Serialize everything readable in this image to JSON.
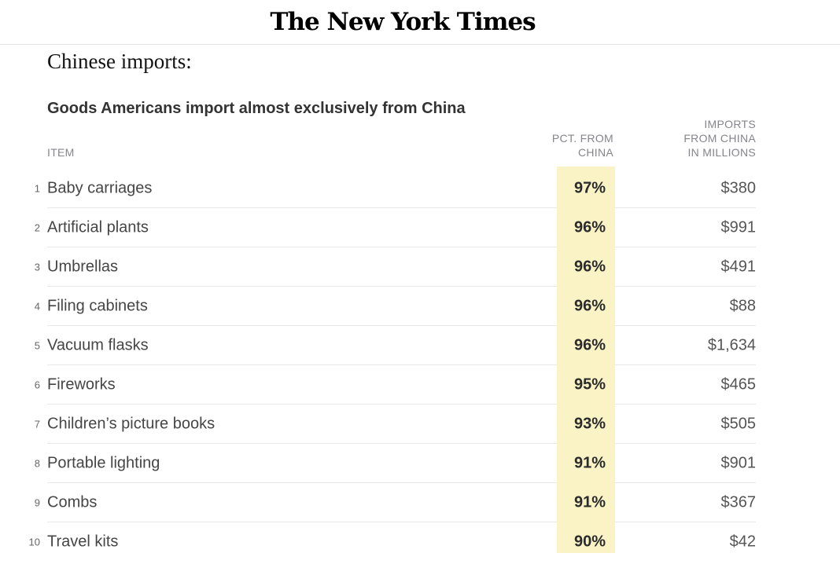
{
  "masthead": {
    "title": "The New York Times"
  },
  "kicker": "Chinese imports:",
  "table": {
    "title": "Goods Americans import almost exclusively from China",
    "columns": {
      "item": "ITEM",
      "pct": "PCT. FROM\nCHINA",
      "imports": "IMPORTS\nFROM CHINA\nIN MILLIONS"
    },
    "rows": [
      {
        "rank": "1",
        "item": "Baby carriages",
        "pct": "97%",
        "amount": "$380"
      },
      {
        "rank": "2",
        "item": "Artificial plants",
        "pct": "96%",
        "amount": "$991"
      },
      {
        "rank": "3",
        "item": "Umbrellas",
        "pct": "96%",
        "amount": "$491"
      },
      {
        "rank": "4",
        "item": "Filing cabinets",
        "pct": "96%",
        "amount": "$88"
      },
      {
        "rank": "5",
        "item": "Vacuum flasks",
        "pct": "96%",
        "amount": "$1,634"
      },
      {
        "rank": "6",
        "item": "Fireworks",
        "pct": "95%",
        "amount": "$465"
      },
      {
        "rank": "7",
        "item": "Children’s picture books",
        "pct": "93%",
        "amount": "$505"
      },
      {
        "rank": "8",
        "item": "Portable lighting",
        "pct": "91%",
        "amount": "$901"
      },
      {
        "rank": "9",
        "item": "Combs",
        "pct": "91%",
        "amount": "$367"
      },
      {
        "rank": "10",
        "item": "Travel kits",
        "pct": "90%",
        "amount": "$42"
      }
    ]
  },
  "colors": {
    "highlight": "#faf3c5",
    "row_divider": "#e8e8e8",
    "header_text": "#85858b"
  }
}
